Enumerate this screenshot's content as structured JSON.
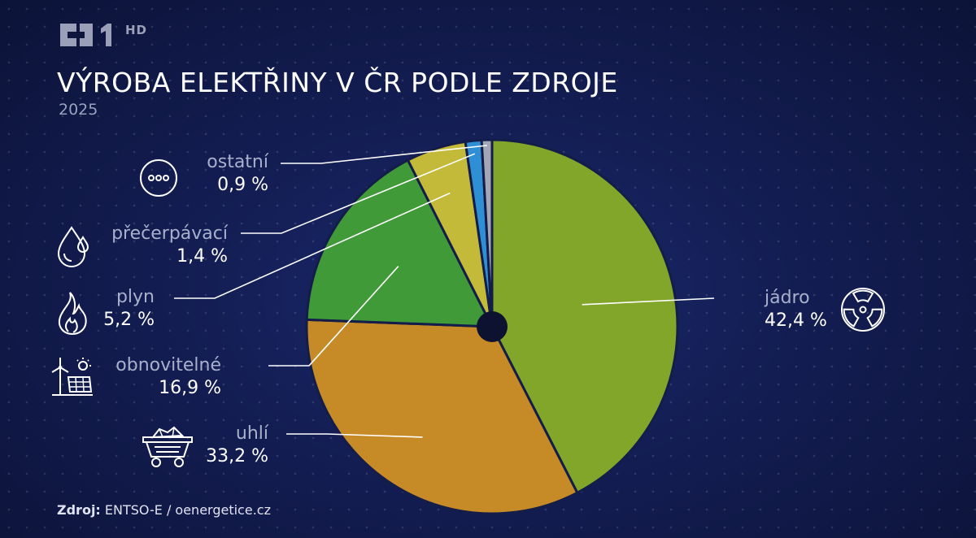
{
  "header": {
    "channel_logo": "ČT1",
    "channel_hd": "HD",
    "title": "VÝROBA ELEKTŘINY V ČR PODLE ZDROJE",
    "subtitle": "2025"
  },
  "footer": {
    "source_label": "Zdroj:",
    "source_text": "ENTSO-E / oenergetice.cz"
  },
  "chart_data": {
    "type": "pie",
    "title": "VÝROBA ELEKTŘINY V ČR PODLE ZDROJE",
    "subtitle": "2025",
    "unit": "%",
    "slices": [
      {
        "name": "jádro",
        "value": 42.4,
        "label": "42,4 %",
        "color": "#82a62a",
        "icon": "radiation-icon"
      },
      {
        "name": "uhlí",
        "value": 33.2,
        "label": "33,2 %",
        "color": "#c68a26",
        "icon": "coal-cart-icon"
      },
      {
        "name": "obnovitelné",
        "value": 16.9,
        "label": "16,9 %",
        "color": "#3f9a37",
        "icon": "wind-solar-icon"
      },
      {
        "name": "plyn",
        "value": 5.2,
        "label": "5,2 %",
        "color": "#c4ba3a",
        "icon": "flame-icon"
      },
      {
        "name": "přečerpávací",
        "value": 1.4,
        "label": "1,4 %",
        "color": "#2f8fd4",
        "icon": "water-drop-icon"
      },
      {
        "name": "ostatní",
        "value": 0.9,
        "label": "0,9 %",
        "color": "#a3a6b4",
        "icon": "dots-circle-icon"
      }
    ]
  }
}
